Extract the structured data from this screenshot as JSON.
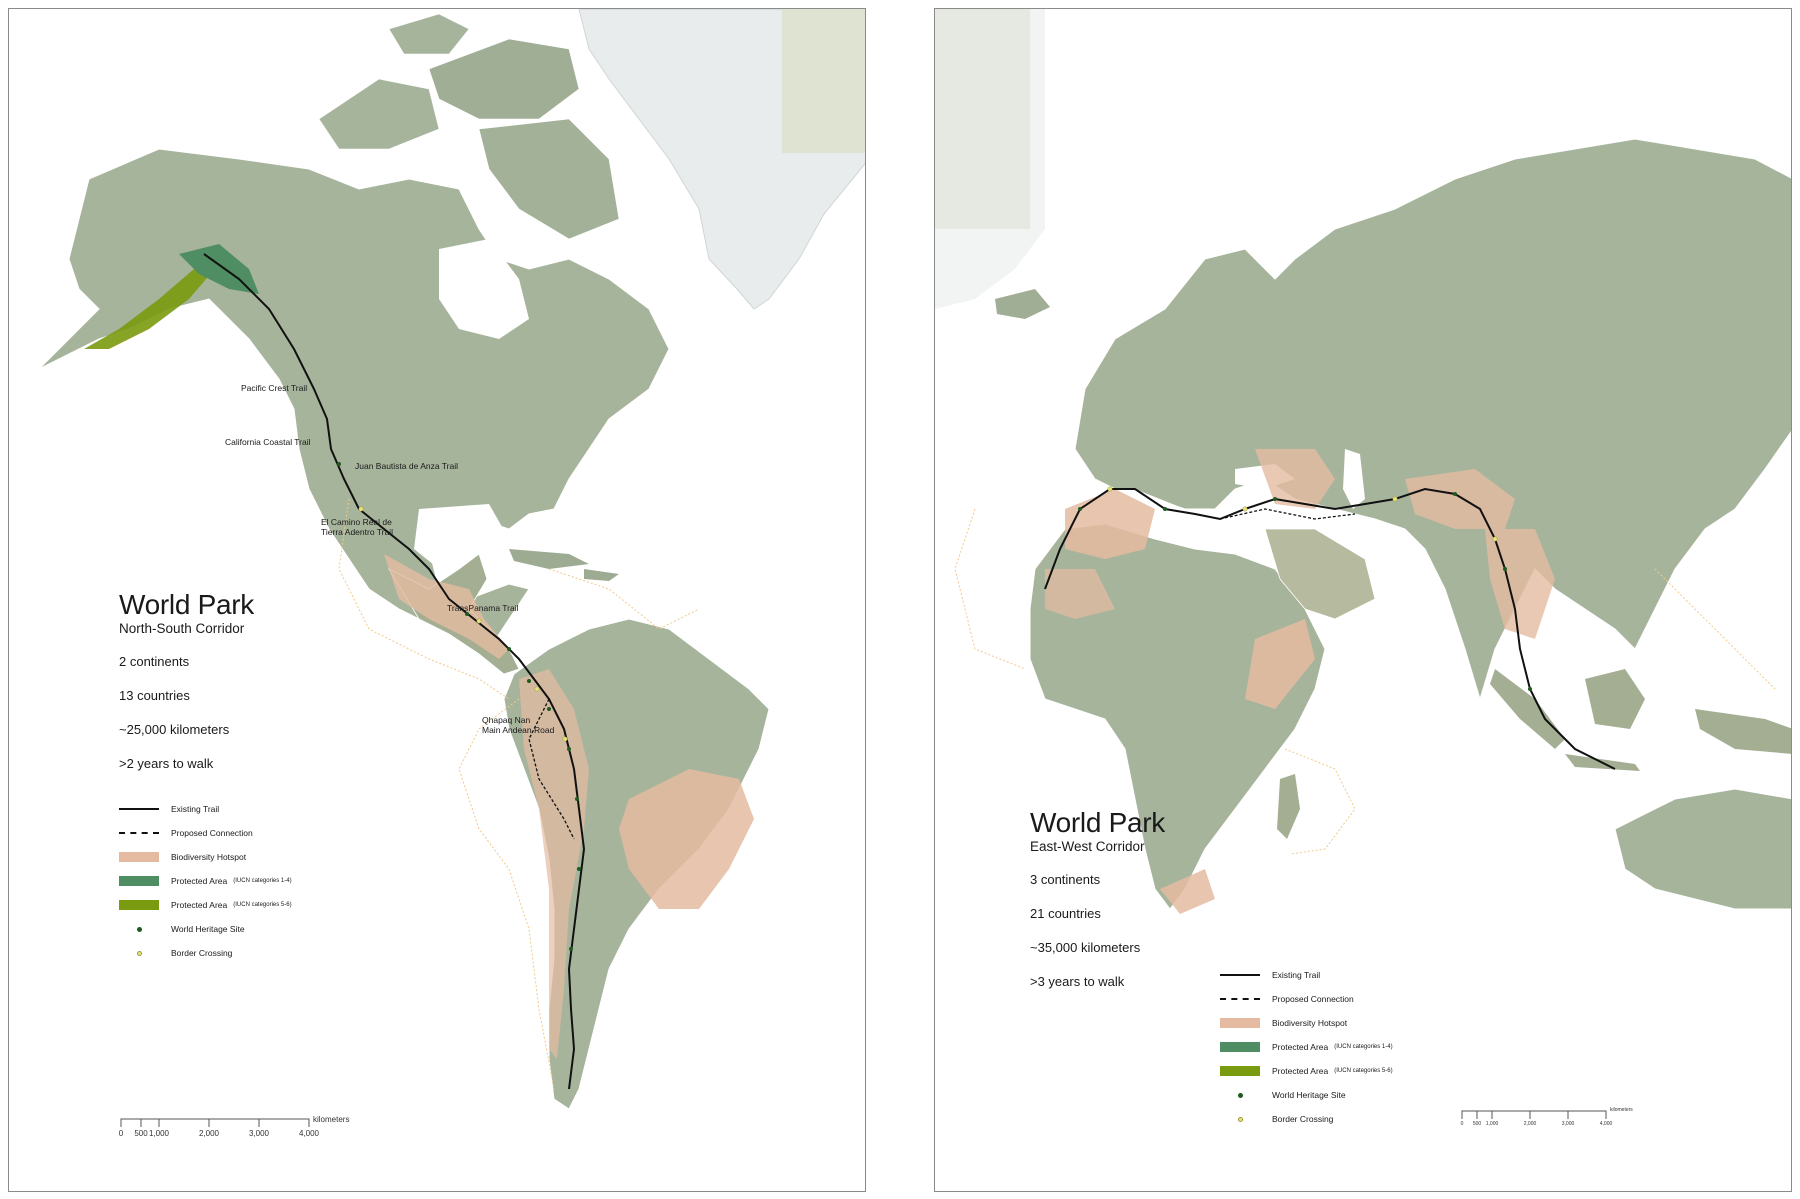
{
  "left": {
    "title": "World Park",
    "subtitle": "North-South Corridor",
    "stats": [
      "2 continents",
      "13 countries",
      "~25,000 kilometers",
      ">2 years to walk"
    ],
    "trail_labels": [
      "Pacific Crest Trail",
      "California Coastal Trail",
      "Juan Bautista de Anza Trail",
      "El Camino Real de",
      "Tierra Adentro Trail",
      "TransPanama Trail",
      "Qhapaq Nan",
      "Main Andean Road"
    ],
    "legend": {
      "existing": "Existing Trail",
      "proposed": "Proposed Connection",
      "hotspot": "Biodiversity Hotspot",
      "protected_14": "Protected Area",
      "protected_14_note": "(IUCN categories 1-4)",
      "protected_56": "Protected Area",
      "protected_56_note": "(IUCN categories 5-6)",
      "heritage": "World Heritage Site",
      "border": "Border Crossing"
    },
    "scale": {
      "unit": "kilometers",
      "ticks": [
        "0",
        "500",
        "1,000",
        "2,000",
        "3,000",
        "4,000"
      ]
    }
  },
  "right": {
    "title": "World Park",
    "subtitle": "East-West Corridor",
    "stats": [
      "3 continents",
      "21 countries",
      "~35,000 kilometers",
      ">3 years to walk"
    ],
    "legend": {
      "existing": "Existing Trail",
      "proposed": "Proposed Connection",
      "hotspot": "Biodiversity Hotspot",
      "protected_14": "Protected Area",
      "protected_14_note": "(IUCN categories 1-4)",
      "protected_56": "Protected Area",
      "protected_56_note": "(IUCN categories 5-6)",
      "heritage": "World Heritage Site",
      "border": "Border Crossing"
    },
    "scale": {
      "unit": "kilometers",
      "ticks": [
        "0",
        "500",
        "1,000",
        "2,000",
        "3,000",
        "4,000"
      ]
    }
  },
  "colors": {
    "land": "#a7b49c",
    "land_dark": "#8fa388",
    "hotspot": "#e4bba1",
    "protected_14": "#4f8d63",
    "protected_56": "#7a9a10",
    "heritage": "#1f5a1f",
    "border": "#e8e47a",
    "trail": "#111111",
    "ocean_line": "#f2c98a"
  }
}
